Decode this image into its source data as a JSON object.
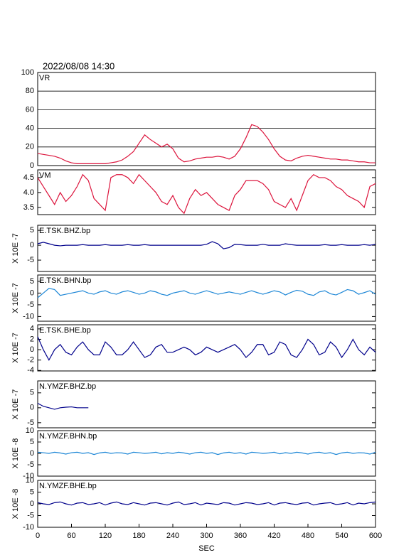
{
  "chart_data": [
    {
      "type": "line",
      "title": "2022/08/08 14:30",
      "label": "VR",
      "color": "#dc143c",
      "grid": true,
      "ylim": [
        0,
        100
      ],
      "yticks": [
        0,
        20,
        40,
        60,
        80,
        100
      ],
      "x": [
        0,
        10,
        20,
        30,
        40,
        50,
        60,
        70,
        80,
        90,
        100,
        110,
        120,
        130,
        140,
        150,
        160,
        170,
        180,
        190,
        200,
        210,
        220,
        230,
        240,
        250,
        260,
        270,
        280,
        290,
        300,
        310,
        320,
        330,
        340,
        350,
        360,
        370,
        380,
        390,
        400,
        410,
        420,
        430,
        440,
        450,
        460,
        470,
        480,
        490,
        500,
        510,
        520,
        530,
        540,
        550,
        560,
        570,
        580,
        590,
        600
      ],
      "values": [
        13,
        12,
        11,
        10,
        8,
        5,
        3,
        2,
        2,
        2,
        2,
        2,
        2,
        3,
        4,
        6,
        10,
        15,
        24,
        33,
        28,
        24,
        20,
        23,
        18,
        8,
        4,
        5,
        7,
        8,
        9,
        9,
        10,
        9,
        7,
        10,
        18,
        30,
        44,
        42,
        36,
        28,
        18,
        10,
        6,
        5,
        8,
        10,
        11,
        10,
        9,
        8,
        7,
        7,
        6,
        6,
        5,
        4,
        4,
        3,
        3
      ]
    },
    {
      "type": "line",
      "label": "VM",
      "color": "#dc143c",
      "ylim": [
        3.26,
        4.76
      ],
      "yticks": [
        3.5,
        {
          "value": 4,
          "label": "4.0"
        },
        4.5
      ],
      "x": [
        0,
        10,
        20,
        30,
        40,
        50,
        60,
        70,
        80,
        90,
        100,
        110,
        120,
        130,
        140,
        150,
        160,
        170,
        180,
        190,
        200,
        210,
        220,
        230,
        240,
        250,
        260,
        270,
        280,
        290,
        300,
        310,
        320,
        330,
        340,
        350,
        360,
        370,
        380,
        390,
        400,
        410,
        420,
        430,
        440,
        450,
        460,
        470,
        480,
        490,
        500,
        510,
        520,
        530,
        540,
        550,
        560,
        570,
        580,
        590,
        600
      ],
      "values": [
        4.5,
        4.2,
        3.9,
        3.6,
        4.0,
        3.7,
        3.9,
        4.2,
        4.6,
        4.4,
        3.8,
        3.6,
        3.4,
        4.5,
        4.6,
        4.6,
        4.5,
        4.3,
        4.6,
        4.4,
        4.2,
        4.0,
        3.7,
        3.6,
        3.9,
        3.5,
        3.3,
        3.8,
        4.1,
        3.9,
        4.0,
        3.8,
        3.6,
        3.5,
        3.4,
        3.9,
        4.1,
        4.4,
        4.4,
        4.4,
        4.3,
        4.1,
        3.7,
        3.6,
        3.5,
        3.8,
        3.4,
        3.9,
        4.4,
        4.6,
        4.5,
        4.5,
        4.4,
        4.2,
        4.1,
        3.9,
        3.8,
        3.7,
        3.5,
        4.2,
        4.3
      ]
    },
    {
      "type": "line",
      "label": "E.TSK.BHZ.bp",
      "ylabel": "X 10E -7",
      "color": "#00008b",
      "ylim": [
        -8.8,
        6.7
      ],
      "yticks": [
        -5,
        0,
        5
      ],
      "x": [
        0,
        10,
        20,
        30,
        40,
        50,
        60,
        70,
        80,
        90,
        100,
        110,
        120,
        130,
        140,
        150,
        160,
        170,
        180,
        190,
        200,
        210,
        220,
        230,
        240,
        250,
        260,
        270,
        280,
        290,
        300,
        310,
        320,
        330,
        340,
        350,
        360,
        370,
        380,
        390,
        400,
        410,
        420,
        430,
        440,
        450,
        460,
        470,
        480,
        490,
        500,
        510,
        520,
        530,
        540,
        550,
        560,
        570,
        580,
        590,
        600
      ],
      "values": [
        0.5,
        1,
        0.5,
        0,
        -0.2,
        0,
        0,
        0,
        0.2,
        0,
        0,
        0,
        0.2,
        0,
        0,
        0,
        0.2,
        0,
        0,
        0.2,
        0,
        0,
        0,
        0,
        0,
        0,
        0,
        0,
        0,
        0,
        0.3,
        1.2,
        0.5,
        -1.2,
        -0.8,
        0.3,
        0.2,
        0,
        0,
        0,
        0.3,
        0,
        0,
        0,
        0.5,
        0.2,
        0,
        0,
        0,
        0,
        0,
        0.2,
        0,
        0,
        0.2,
        0,
        0,
        0,
        0.2,
        0,
        0.3
      ]
    },
    {
      "type": "line",
      "label": "E.TSK.BHN.bp",
      "ylabel": "X 10E -7",
      "color": "#1c86d6",
      "ylim": [
        -12,
        7.7
      ],
      "yticks": [
        -10,
        -5,
        0,
        5
      ],
      "x": [
        0,
        10,
        20,
        30,
        40,
        50,
        60,
        70,
        80,
        90,
        100,
        110,
        120,
        130,
        140,
        150,
        160,
        170,
        180,
        190,
        200,
        210,
        220,
        230,
        240,
        250,
        260,
        270,
        280,
        290,
        300,
        310,
        320,
        330,
        340,
        350,
        360,
        370,
        380,
        390,
        400,
        410,
        420,
        430,
        440,
        450,
        460,
        470,
        480,
        490,
        500,
        510,
        520,
        530,
        540,
        550,
        560,
        570,
        580,
        590,
        600
      ],
      "values": [
        -2,
        0,
        2,
        1.5,
        -1,
        -0.5,
        0,
        0.5,
        1,
        0,
        -0.5,
        0.5,
        1,
        0,
        -0.5,
        0.5,
        1,
        0.3,
        -0.5,
        0,
        1,
        0.5,
        -0.5,
        -1,
        0,
        0.5,
        1,
        0,
        -0.5,
        0.3,
        1,
        0.3,
        -0.5,
        0,
        0.5,
        0,
        -0.5,
        0.3,
        1,
        0.2,
        -0.5,
        0.2,
        1,
        0.5,
        -0.8,
        0.3,
        1.2,
        0.8,
        -0.5,
        -1,
        0.5,
        1,
        -0.3,
        -0.8,
        0.3,
        1.5,
        1,
        -0.5,
        0.2,
        1,
        -0.5
      ]
    },
    {
      "type": "line",
      "label": "E.TSK.BHE.bp",
      "ylabel": "X 10E -7",
      "color": "#00008b",
      "ylim": [
        -4.1,
        4.8
      ],
      "yticks": [
        -4,
        -2,
        0,
        2,
        4
      ],
      "x": [
        0,
        10,
        20,
        30,
        40,
        50,
        60,
        70,
        80,
        90,
        100,
        110,
        120,
        130,
        140,
        150,
        160,
        170,
        180,
        190,
        200,
        210,
        220,
        230,
        240,
        250,
        260,
        270,
        280,
        290,
        300,
        310,
        320,
        330,
        340,
        350,
        360,
        370,
        380,
        390,
        400,
        410,
        420,
        430,
        440,
        450,
        460,
        470,
        480,
        490,
        500,
        510,
        520,
        530,
        540,
        550,
        560,
        570,
        580,
        590,
        600
      ],
      "values": [
        2.5,
        0,
        -2,
        0,
        1,
        -0.5,
        -1,
        0.5,
        1.5,
        0,
        -1,
        -1,
        1.5,
        0.5,
        -1,
        -1,
        0,
        1.5,
        0,
        -1.5,
        -1,
        0.5,
        1,
        -0.5,
        -0.5,
        0,
        0.5,
        0,
        -1,
        -0.5,
        0.5,
        0,
        -0.5,
        0,
        0.5,
        1,
        0,
        -1.5,
        -0.5,
        1,
        1,
        -1,
        -0.5,
        1.5,
        1,
        -1,
        -1.5,
        0,
        2,
        1,
        -1,
        -0.5,
        1.5,
        0.5,
        -1.5,
        0,
        2,
        0,
        -1,
        0.5,
        -0.5
      ]
    },
    {
      "type": "line",
      "label": "N.YMZF.BHZ.bp",
      "ylabel": "X 10E -7",
      "color": "#00008b",
      "ylim": [
        -6.7,
        9
      ],
      "yticks": [
        -5,
        0,
        5
      ],
      "x": [
        0,
        10,
        20,
        30,
        40,
        50,
        60,
        70,
        80,
        90
      ],
      "values": [
        1.5,
        0.5,
        0,
        -0.5,
        0,
        0.2,
        0.3,
        0,
        0,
        0
      ]
    },
    {
      "type": "line",
      "label": "N.YMZF.BHN.bp",
      "ylabel": "X 10E -8",
      "color": "#1c86d6",
      "ylim": [
        -10,
        10
      ],
      "yticks": [
        -10,
        -5,
        0,
        5,
        10
      ],
      "x": [
        0,
        10,
        20,
        30,
        40,
        50,
        60,
        70,
        80,
        90,
        100,
        110,
        120,
        130,
        140,
        150,
        160,
        170,
        180,
        190,
        200,
        210,
        220,
        230,
        240,
        250,
        260,
        270,
        280,
        290,
        300,
        310,
        320,
        330,
        340,
        350,
        360,
        370,
        380,
        390,
        400,
        410,
        420,
        430,
        440,
        450,
        460,
        470,
        480,
        490,
        500,
        510,
        520,
        530,
        540,
        550,
        560,
        570,
        580,
        590,
        600
      ],
      "values": [
        0.5,
        0.3,
        0,
        0.5,
        0.2,
        -0.3,
        0.3,
        0.5,
        0,
        0.3,
        -0.5,
        0.2,
        0.5,
        0,
        0.3,
        0.2,
        -0.3,
        0.5,
        0.3,
        0,
        0.2,
        0.5,
        -0.2,
        0.3,
        0,
        0.5,
        0.2,
        -0.3,
        0.3,
        0.5,
        0,
        0.3,
        -0.5,
        0.2,
        0.5,
        0,
        0.3,
        -0.3,
        0.5,
        0.3,
        0,
        0.2,
        0.5,
        -0.2,
        0.3,
        0,
        0.5,
        0.2,
        -0.3,
        0.3,
        0.5,
        0,
        0.3,
        -0.5,
        0.2,
        0.5,
        0,
        0.3,
        0.2,
        -0.3,
        0.5
      ]
    },
    {
      "type": "line",
      "label": "N.YMZF.BHE.bp",
      "ylabel": "X 10E -8",
      "color": "#00008b",
      "ylim": [
        -10,
        10
      ],
      "yticks": [
        -10,
        -5,
        0,
        5,
        10
      ],
      "xlim": [
        0,
        600
      ],
      "xticks": [
        0,
        60,
        120,
        180,
        240,
        300,
        360,
        420,
        480,
        540,
        600
      ],
      "xlabel": "SEC",
      "x": [
        0,
        10,
        20,
        30,
        40,
        50,
        60,
        70,
        80,
        90,
        100,
        110,
        120,
        130,
        140,
        150,
        160,
        170,
        180,
        190,
        200,
        210,
        220,
        230,
        240,
        250,
        260,
        270,
        280,
        290,
        300,
        310,
        320,
        330,
        340,
        350,
        360,
        370,
        380,
        390,
        400,
        410,
        420,
        430,
        440,
        450,
        460,
        470,
        480,
        490,
        500,
        510,
        520,
        530,
        540,
        550,
        560,
        570,
        580,
        590,
        600
      ],
      "values": [
        0.5,
        0,
        -0.3,
        0.5,
        0.8,
        0,
        -0.5,
        0.3,
        0.5,
        -0.3,
        0,
        0.5,
        -0.5,
        0.3,
        0.8,
        0,
        -0.3,
        0.5,
        0,
        -0.5,
        0.3,
        0.5,
        0,
        -0.5,
        0.3,
        0.8,
        -0.3,
        0,
        0.5,
        -0.5,
        0.3,
        0,
        -0.3,
        0.5,
        0.3,
        -0.5,
        0,
        0.5,
        0.3,
        -0.3,
        0,
        0.5,
        -0.5,
        0.3,
        0.5,
        0,
        -0.3,
        0.3,
        0.5,
        -0.5,
        0,
        0.3,
        0.5,
        -0.3,
        0,
        0.5,
        -0.5,
        0.3,
        0,
        0.5,
        0.8
      ]
    }
  ]
}
